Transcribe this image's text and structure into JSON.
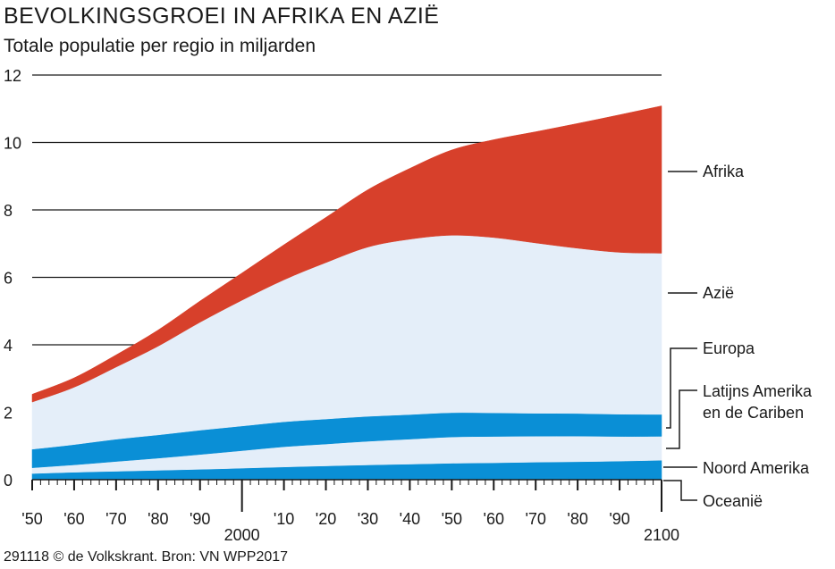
{
  "chart_data": {
    "type": "area",
    "title": "BEVOLKINGSGROEI IN AFRIKA EN AZIË",
    "subtitle": "Totale populatie per regio in miljarden",
    "ylim": [
      0,
      12
    ],
    "xlim": [
      1950,
      2100
    ],
    "grid": true,
    "yticks": [
      0,
      2,
      4,
      6,
      8,
      10,
      12
    ],
    "ytick_labels": [
      "0",
      "2",
      "4",
      "6",
      "8",
      "10",
      "12"
    ],
    "xticks": [
      1950,
      1960,
      1970,
      1980,
      1990,
      2000,
      2010,
      2020,
      2030,
      2040,
      2050,
      2060,
      2070,
      2080,
      2090,
      2100
    ],
    "xtick_labels": [
      "'50",
      "'60",
      "'70",
      "'80",
      "'90",
      "2000",
      "'10",
      "'20",
      "'30",
      "'40",
      "'50",
      "'60",
      "'70",
      "'80",
      "'90",
      "2100"
    ],
    "x": [
      1950,
      1960,
      1970,
      1980,
      1990,
      2000,
      2010,
      2020,
      2030,
      2040,
      2050,
      2060,
      2070,
      2080,
      2090,
      2100
    ],
    "series": [
      {
        "name": "Oceanië",
        "color": "#0a8fd6",
        "values": [
          0.013,
          0.016,
          0.02,
          0.023,
          0.027,
          0.031,
          0.037,
          0.043,
          0.048,
          0.052,
          0.057,
          0.061,
          0.064,
          0.068,
          0.071,
          0.075
        ]
      },
      {
        "name": "Noord Amerika",
        "color": "#0a8fd6",
        "values": [
          0.17,
          0.205,
          0.23,
          0.255,
          0.28,
          0.31,
          0.34,
          0.365,
          0.39,
          0.41,
          0.43,
          0.44,
          0.455,
          0.465,
          0.48,
          0.5
        ]
      },
      {
        "name": "Latijns Amerika en de Cariben",
        "color": "#e4eef9",
        "values": [
          0.17,
          0.22,
          0.29,
          0.36,
          0.44,
          0.52,
          0.6,
          0.65,
          0.7,
          0.74,
          0.78,
          0.78,
          0.77,
          0.76,
          0.73,
          0.71
        ]
      },
      {
        "name": "Europa",
        "color": "#0a8fd6",
        "values": [
          0.55,
          0.6,
          0.66,
          0.69,
          0.72,
          0.73,
          0.74,
          0.74,
          0.74,
          0.73,
          0.72,
          0.7,
          0.68,
          0.67,
          0.66,
          0.65
        ]
      },
      {
        "name": "Azië",
        "color": "#e4eef9",
        "values": [
          1.4,
          1.7,
          2.14,
          2.63,
          3.2,
          3.73,
          4.21,
          4.64,
          5.02,
          5.2,
          5.26,
          5.2,
          5.05,
          4.9,
          4.8,
          4.78
        ]
      },
      {
        "name": "Afrika",
        "color": "#d7402b",
        "values": [
          0.23,
          0.28,
          0.36,
          0.48,
          0.63,
          0.81,
          1.04,
          1.34,
          1.7,
          2.1,
          2.53,
          2.9,
          3.3,
          3.7,
          4.08,
          4.37
        ]
      }
    ],
    "legend": [
      "Afrika",
      "Azië",
      "Europa",
      "Latijns Amerika",
      "en de Cariben",
      "Noord Amerika",
      "Oceanië"
    ],
    "source": "291118 © de Volkskrant. Bron: VN WPP2017"
  }
}
